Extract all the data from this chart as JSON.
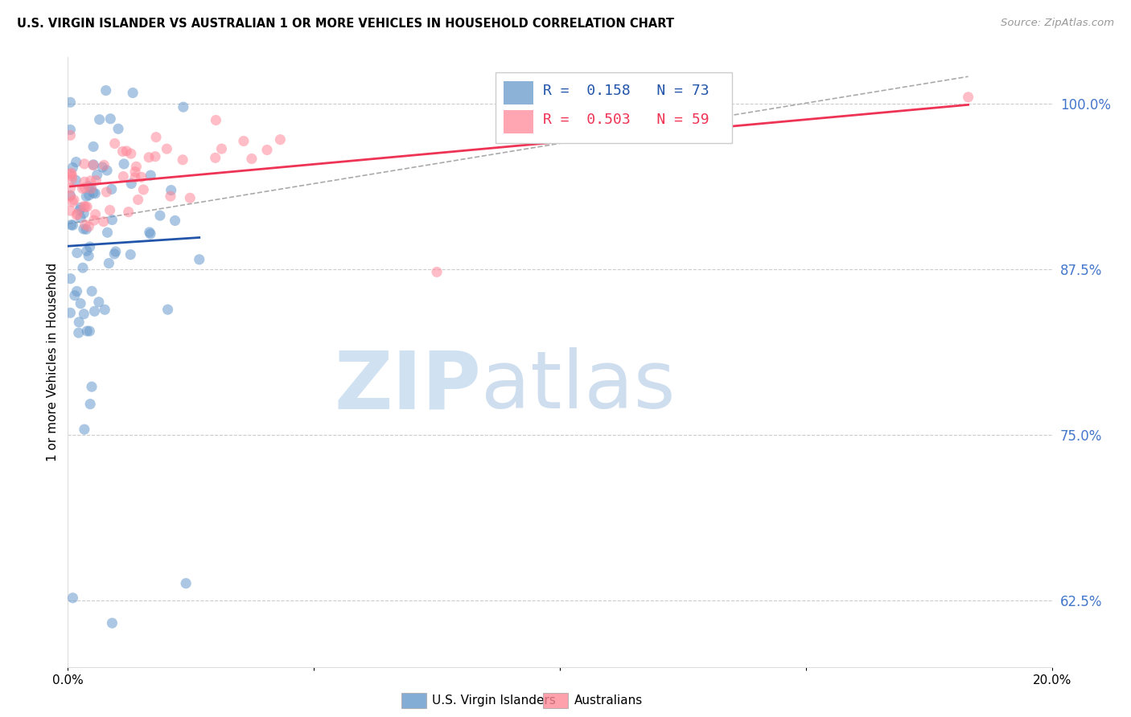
{
  "title": "U.S. VIRGIN ISLANDER VS AUSTRALIAN 1 OR MORE VEHICLES IN HOUSEHOLD CORRELATION CHART",
  "source": "Source: ZipAtlas.com",
  "ylabel": "1 or more Vehicles in Household",
  "ytick_labels": [
    "62.5%",
    "75.0%",
    "87.5%",
    "100.0%"
  ],
  "ytick_values": [
    0.625,
    0.75,
    0.875,
    1.0
  ],
  "xmin": 0.0,
  "xmax": 0.2,
  "ymin": 0.575,
  "ymax": 1.035,
  "legend_r1": "R =  0.158",
  "legend_n1": "N = 73",
  "legend_r2": "R =  0.503",
  "legend_n2": "N = 59",
  "color_blue": "#6699CC",
  "color_pink": "#FF8899",
  "color_trend_blue": "#2255AA",
  "color_trend_pink": "#EE3355",
  "color_right_axis": "#4477CC",
  "legend_entries": [
    "U.S. Virgin Islanders",
    "Australians"
  ]
}
